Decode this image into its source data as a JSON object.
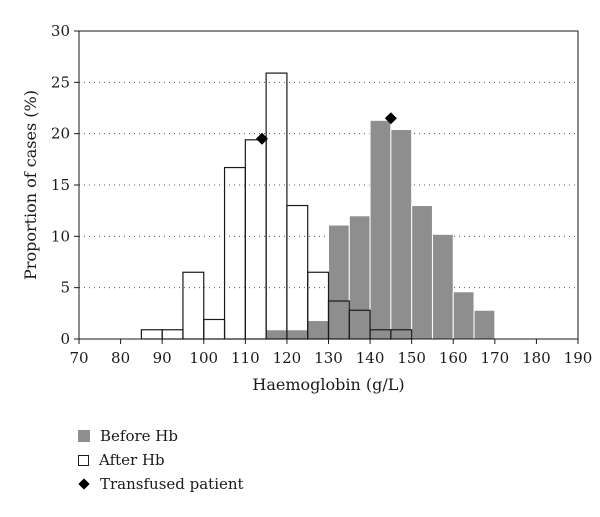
{
  "chart_data": {
    "type": "bar",
    "xlabel": "Haemoglobin (g/L)",
    "ylabel": "Proportion of cases (%)",
    "xlim": [
      70,
      190
    ],
    "ylim": [
      0,
      30
    ],
    "xticks": [
      70,
      80,
      90,
      100,
      110,
      120,
      130,
      140,
      150,
      160,
      170,
      180,
      190
    ],
    "yticks": [
      0,
      5,
      10,
      15,
      20,
      25,
      30
    ],
    "bin_width": 5,
    "grid": "horizontal dotted",
    "legend_position": "bottom-left",
    "series": [
      {
        "name": "Before Hb",
        "style": "filled",
        "color": "#8e8e8e",
        "bins": [
          117.5,
          122.5,
          127.5,
          132.5,
          137.5,
          142.5,
          147.5,
          152.5,
          157.5,
          162.5,
          167.5
        ],
        "values": [
          0.9,
          0.9,
          1.8,
          11.1,
          12.0,
          21.3,
          20.4,
          13.0,
          10.2,
          4.6,
          2.8
        ]
      },
      {
        "name": "After Hb",
        "style": "outline",
        "color": "#1a1a1a",
        "bins": [
          87.5,
          92.5,
          97.5,
          102.5,
          107.5,
          112.5,
          117.5,
          122.5,
          127.5,
          132.5,
          137.5,
          142.5,
          147.5
        ],
        "values": [
          0.9,
          0.9,
          6.5,
          1.9,
          16.7,
          19.4,
          25.9,
          13.0,
          6.5,
          3.7,
          2.8,
          0.9,
          0.9
        ]
      },
      {
        "name": "Transfused patient",
        "style": "diamond",
        "color": "#000000",
        "x": [
          114,
          145
        ],
        "y": [
          19.5,
          21.5
        ]
      }
    ]
  },
  "legend": [
    {
      "label": "Before Hb",
      "marker": "gray-square-icon"
    },
    {
      "label": "After Hb",
      "marker": "outline-square-icon"
    },
    {
      "label": "Transfused patient",
      "marker": "diamond-icon"
    }
  ]
}
